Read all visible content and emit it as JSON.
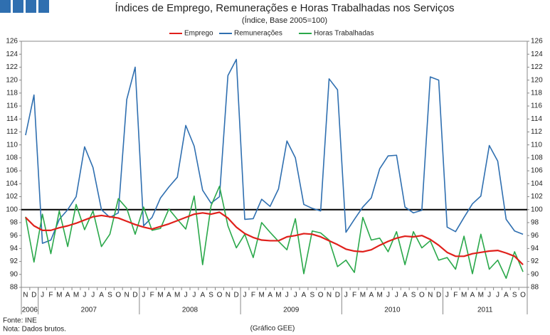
{
  "chart_data": {
    "type": "line",
    "title": "Índices de Emprego, Remunerações e Horas Trabalhadas nos Serviços",
    "subtitle": "(Índice, Base 2005=100)",
    "categories": [
      "N",
      "D",
      "J",
      "F",
      "M",
      "A",
      "M",
      "J",
      "J",
      "A",
      "S",
      "O",
      "N",
      "D",
      "J",
      "F",
      "M",
      "A",
      "M",
      "J",
      "J",
      "A",
      "S",
      "O",
      "N",
      "D",
      "J",
      "F",
      "M",
      "A",
      "M",
      "J",
      "J",
      "A",
      "S",
      "O",
      "N",
      "D",
      "J",
      "F",
      "M",
      "A",
      "M",
      "J",
      "J",
      "A",
      "S",
      "O",
      "N",
      "D",
      "J",
      "F",
      "M",
      "A",
      "M",
      "J",
      "J",
      "A",
      "S",
      "O"
    ],
    "x_groups": [
      {
        "label": "2006",
        "months": 2
      },
      {
        "label": "2007",
        "months": 12
      },
      {
        "label": "2008",
        "months": 12
      },
      {
        "label": "2009",
        "months": 12
      },
      {
        "label": "2010",
        "months": 12
      },
      {
        "label": "2011",
        "months": 10
      }
    ],
    "series": [
      {
        "name": "Emprego",
        "color": "#e0201b",
        "width": 2.2,
        "values": [
          98.8,
          97.5,
          96.8,
          96.8,
          97.2,
          97.5,
          97.9,
          98.4,
          98.9,
          99.1,
          98.9,
          98.7,
          98.2,
          97.7,
          97.3,
          97.0,
          97.4,
          97.8,
          98.3,
          98.8,
          99.3,
          99.5,
          99.3,
          99.6,
          98.7,
          97.3,
          96.3,
          95.7,
          95.3,
          95.2,
          95.2,
          95.8,
          96.0,
          96.3,
          96.2,
          95.8,
          95.2,
          94.6,
          93.9,
          93.6,
          93.5,
          93.8,
          94.5,
          95.1,
          95.6,
          95.9,
          95.8,
          96.0,
          95.4,
          94.5,
          93.4,
          92.8,
          92.8,
          93.2,
          93.4,
          93.6,
          93.7,
          93.3,
          92.8,
          91.5
        ]
      },
      {
        "name": "Remunerações",
        "color": "#2f6fb0",
        "width": 1.6,
        "values": [
          111.5,
          117.7,
          94.8,
          95.3,
          98.5,
          100,
          102,
          109.7,
          106.5,
          100,
          98.8,
          99.5,
          117,
          122,
          97.5,
          98.8,
          101.8,
          103.5,
          105,
          113,
          109.8,
          103,
          101,
          102,
          120.7,
          123.2,
          98.5,
          98.6,
          101.6,
          100.5,
          103.2,
          110.6,
          108,
          100.8,
          100.2,
          99.8,
          120.2,
          118.5,
          96.5,
          98.5,
          100.4,
          101.8,
          106.3,
          108.3,
          108.4,
          100.4,
          99.5,
          99.9,
          120.5,
          120,
          97.3,
          96.6,
          98.8,
          100.9,
          102.1,
          109.9,
          107.5,
          98.5,
          96.7,
          96.2
        ]
      },
      {
        "name": "Horas Trabalhadas",
        "color": "#2aa84a",
        "width": 1.6,
        "values": [
          98.9,
          91.9,
          99.3,
          93.2,
          99.8,
          94.3,
          100.8,
          96.9,
          99.8,
          94.3,
          96.2,
          101.7,
          100.2,
          96.2,
          100.4,
          96.8,
          97.1,
          100.1,
          98.5,
          97.0,
          102.1,
          91.5,
          100.6,
          103.6,
          97.5,
          94.1,
          96.2,
          92.6,
          98.0,
          96.5,
          95.1,
          93.8,
          98.6,
          90.1,
          96.7,
          96.4,
          95.3,
          91.2,
          92.2,
          90.3,
          98.8,
          95.3,
          95.6,
          93.5,
          96.6,
          91.5,
          96.6,
          94.1,
          95.2,
          92.2,
          92.6,
          90.8,
          95.9,
          90.1,
          96.2,
          90.8,
          92.2,
          89.4,
          93.5,
          90.4
        ]
      }
    ],
    "ylim": [
      88,
      126
    ],
    "yticks": [
      88,
      90,
      92,
      94,
      96,
      98,
      100,
      102,
      104,
      106,
      108,
      110,
      112,
      114,
      116,
      118,
      120,
      122,
      124,
      126
    ],
    "reference_line": 100,
    "grid": false,
    "legend": "top",
    "source": "Fonte: INE",
    "note": "Nota: Dados brutos.",
    "credit": "(Gráfico GEE)"
  }
}
